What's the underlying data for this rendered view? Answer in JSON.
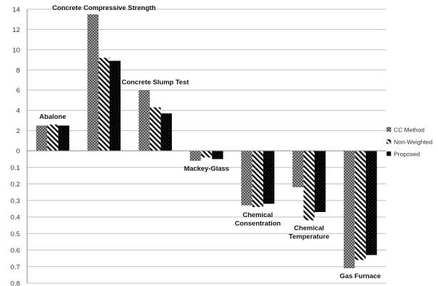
{
  "chart_data": {
    "type": "bar",
    "title": "",
    "xlabel": "",
    "ylabel": "",
    "categories": [
      "Abalone",
      "Concrete Compressive Strength",
      "Concrete Slump Test",
      "Mackey-Glass",
      "Chemical Consentration",
      "Chemical Temperature",
      "Gas Furnace"
    ],
    "series": [
      {
        "name": "CC Method",
        "values": [
          2.5,
          13.5,
          6.0,
          0.06,
          0.33,
          0.22,
          0.71
        ]
      },
      {
        "name": "Non-Weighted",
        "values": [
          2.6,
          9.2,
          4.3,
          0.04,
          0.34,
          0.42,
          0.66
        ]
      },
      {
        "name": "Proposed",
        "values": [
          2.5,
          8.9,
          3.7,
          0.05,
          0.32,
          0.37,
          0.63
        ]
      }
    ],
    "upper_axis": {
      "min": 0,
      "max": 14,
      "ticks": [
        "0",
        "2",
        "4",
        "6",
        "8",
        "10",
        "12",
        "14"
      ]
    },
    "lower_axis": {
      "min": 0,
      "max": 0.8,
      "ticks": [
        "0.1",
        "0.2",
        "0.3",
        "0.4",
        "0.5",
        "0.6",
        "0.7",
        "0.8"
      ]
    },
    "upper_group_count": 3,
    "annotations": [
      {
        "lines": [
          "Abalone"
        ],
        "group": 0
      },
      {
        "lines": [
          "Concrete Compressive Strength"
        ],
        "group": 1
      },
      {
        "lines": [
          "Concrete Slump Test"
        ],
        "group": 2
      },
      {
        "lines": [
          "Mackey-Glass"
        ],
        "group": 3
      },
      {
        "lines": [
          "Chemical",
          "Consentration"
        ],
        "group": 4
      },
      {
        "lines": [
          "Chemical",
          "Temperature"
        ],
        "group": 5
      },
      {
        "lines": [
          "Gas Furnace"
        ],
        "group": 6
      }
    ],
    "grid": true,
    "legend_position": "right"
  }
}
